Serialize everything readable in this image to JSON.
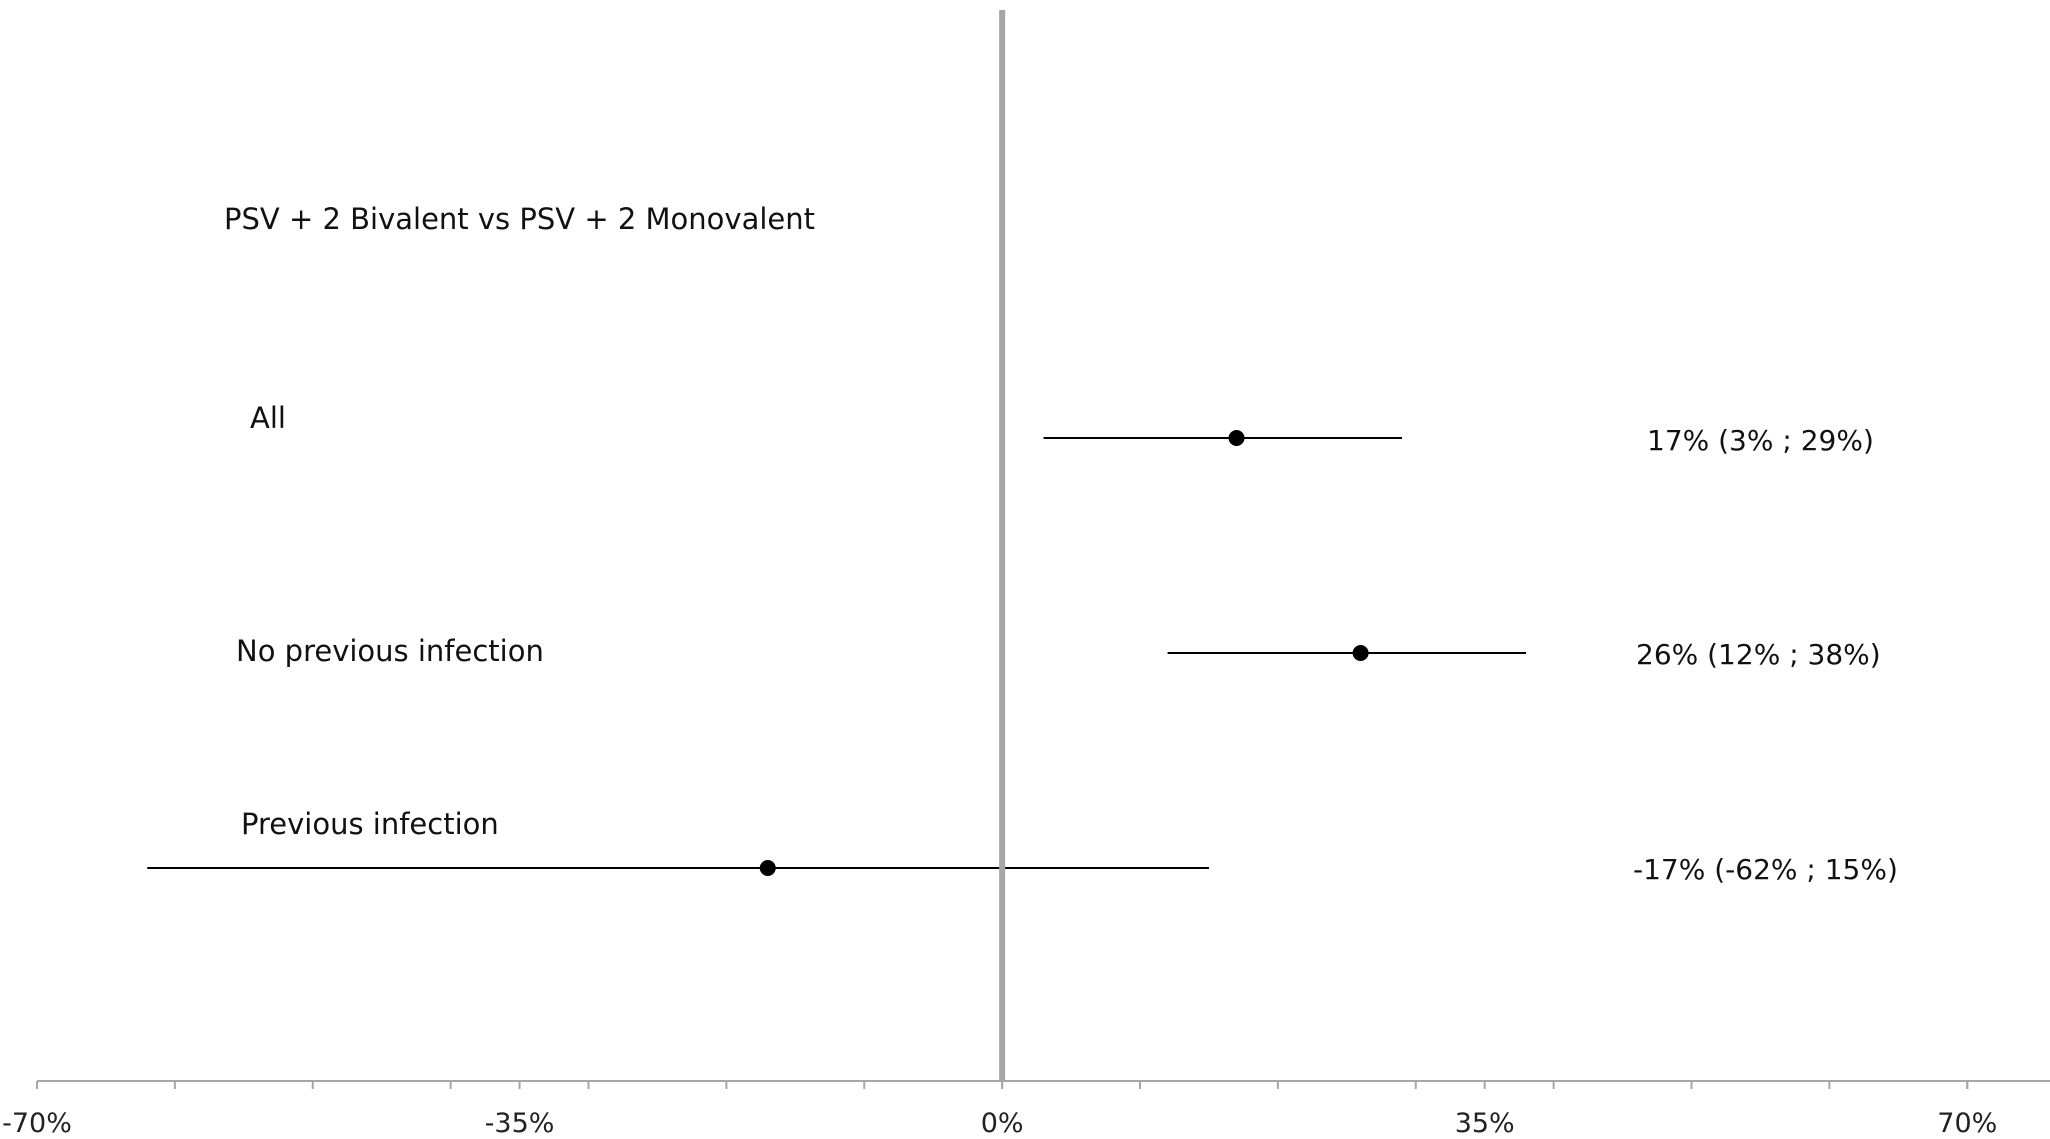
{
  "chart_data": {
    "type": "forest",
    "comparison_title": "PSV + 2 Bivalent vs PSV + 2 Monovalent",
    "xlim": [
      -70,
      76
    ],
    "x_ticks": [
      -70,
      -35,
      0,
      35,
      70
    ],
    "x_tick_labels": [
      "-70%",
      "-35%",
      "0%",
      "35%",
      "70%"
    ],
    "minor_tick_step": 10,
    "reference_line_x": 0,
    "rows": [
      {
        "label": "All",
        "estimate": 17,
        "ci_low": 3,
        "ci_high": 29,
        "text": "17% (3% ;  29%)"
      },
      {
        "label": "No previous infection",
        "estimate": 26,
        "ci_low": 12,
        "ci_high": 38,
        "text": "26% (12% ;  38%)"
      },
      {
        "label": "Previous infection",
        "estimate": -17,
        "ci_low": -62,
        "ci_high": 15,
        "text": "-17% (-62% ;  15%)"
      }
    ],
    "colors": {
      "reference_line": "#a6a6a6",
      "axis": "#a6a6a6",
      "marker": "#000000",
      "ci_line": "#000000"
    }
  }
}
